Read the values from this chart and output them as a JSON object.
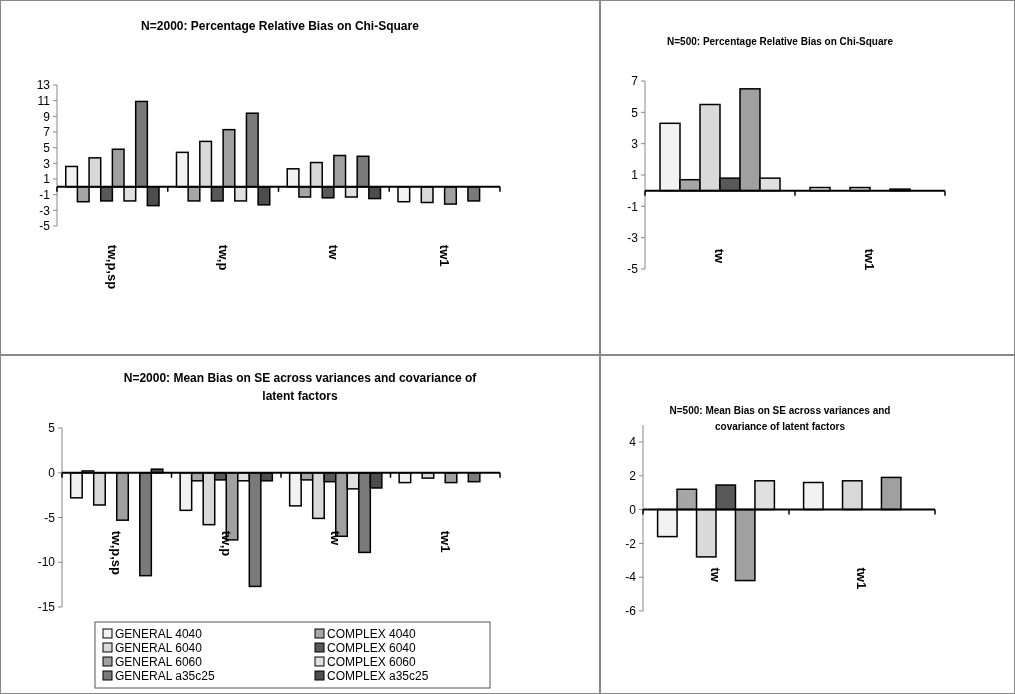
{
  "chart_data": [
    {
      "type": "bar",
      "title": "N=2000: Percentage Relative Bias on Chi-Square",
      "categories": [
        "tw,p,sp",
        "tw,p",
        "tw",
        "tw1"
      ],
      "ylim": [
        -5,
        13
      ],
      "yticks": [
        -5,
        -3,
        -1,
        1,
        3,
        5,
        7,
        9,
        11,
        13
      ],
      "legend": false,
      "series": [
        {
          "color": "#f2f2f2",
          "values": [
            2.6,
            4.4,
            2.3,
            -1.9
          ]
        },
        {
          "color": "#a6a6a6",
          "values": [
            -1.9,
            -1.8,
            -1.3,
            null
          ]
        },
        {
          "color": "#d9d9d9",
          "values": [
            3.7,
            5.8,
            3.1,
            -2.0
          ]
        },
        {
          "color": "#595959",
          "values": [
            -1.8,
            -1.8,
            -1.4,
            null
          ]
        },
        {
          "color": "#a0a0a0",
          "values": [
            4.8,
            7.3,
            4.0,
            -2.2
          ]
        },
        {
          "color": "#e0e0e0",
          "values": [
            -1.8,
            -1.8,
            -1.3,
            null
          ]
        },
        {
          "color": "#7a7a7a",
          "values": [
            10.9,
            9.4,
            3.9,
            -1.8
          ]
        },
        {
          "color": "#4d4d4d",
          "values": [
            -2.4,
            -2.3,
            -1.5,
            null
          ]
        }
      ]
    },
    {
      "type": "bar",
      "title": "N=500: Percentage Relative Bias on Chi-Square",
      "categories": [
        "tw",
        "tw1"
      ],
      "ylim": [
        -5,
        7
      ],
      "yticks": [
        -5,
        -3,
        -1,
        1,
        3,
        5,
        7
      ],
      "legend": false,
      "series": [
        {
          "color": "#f2f2f2",
          "values": [
            4.3,
            0.2
          ]
        },
        {
          "color": "#a6a6a6",
          "values": [
            0.7,
            null
          ]
        },
        {
          "color": "#d9d9d9",
          "values": [
            5.5,
            0.2
          ]
        },
        {
          "color": "#595959",
          "values": [
            0.8,
            null
          ]
        },
        {
          "color": "#a0a0a0",
          "values": [
            6.5,
            0.1
          ]
        },
        {
          "color": "#e0e0e0",
          "values": [
            0.8,
            null
          ]
        }
      ]
    },
    {
      "type": "bar",
      "title": "N=2000: Mean Bias on SE across variances and covariance of latent factors",
      "categories": [
        "tw,p,sp",
        "tw,p",
        "tw",
        "tw1"
      ],
      "ylim": [
        -15,
        5
      ],
      "yticks": [
        -15,
        -10,
        -5,
        0,
        5
      ],
      "legend": "bottom",
      "series": [
        {
          "name": "GENERAL 4040",
          "color": "#f2f2f2",
          "values": [
            -2.8,
            -4.2,
            -3.7,
            -1.1
          ]
        },
        {
          "name": "COMPLEX 4040",
          "color": "#a6a6a6",
          "values": [
            0.2,
            -0.9,
            -0.8,
            null
          ]
        },
        {
          "name": "GENERAL 6040",
          "color": "#d9d9d9",
          "values": [
            -3.6,
            -5.8,
            -5.1,
            -0.6
          ]
        },
        {
          "name": "COMPLEX 6040",
          "color": "#595959",
          "values": [
            0.0,
            -0.8,
            -1.0,
            null
          ]
        },
        {
          "name": "GENERAL 6060",
          "color": "#a0a0a0",
          "values": [
            -5.3,
            -7.5,
            -7.1,
            -1.1
          ]
        },
        {
          "name": "COMPLEX 6060",
          "color": "#e0e0e0",
          "values": [
            null,
            -0.9,
            -1.8,
            null
          ]
        },
        {
          "name": "GENERAL a35c25",
          "color": "#7a7a7a",
          "values": [
            -11.5,
            -12.7,
            -8.9,
            -1.0
          ]
        },
        {
          "name": "COMPLEX a35c25",
          "color": "#4d4d4d",
          "values": [
            0.4,
            -0.9,
            -1.7,
            null
          ]
        }
      ]
    },
    {
      "type": "bar",
      "title": "N=500: Mean Bias on SE across variances and covariance of latent factors",
      "categories": [
        "tw",
        "tw1"
      ],
      "ylim": [
        -6,
        5
      ],
      "yticks": [
        -6,
        -4,
        -2,
        0,
        2,
        4
      ],
      "legend": false,
      "series": [
        {
          "color": "#f2f2f2",
          "values": [
            -1.6,
            1.6
          ]
        },
        {
          "color": "#a6a6a6",
          "values": [
            1.2,
            null
          ]
        },
        {
          "color": "#d9d9d9",
          "values": [
            -2.8,
            1.7
          ]
        },
        {
          "color": "#595959",
          "values": [
            1.45,
            null
          ]
        },
        {
          "color": "#a0a0a0",
          "values": [
            -4.2,
            1.9
          ]
        },
        {
          "color": "#e0e0e0",
          "values": [
            1.7,
            null
          ]
        }
      ]
    }
  ]
}
